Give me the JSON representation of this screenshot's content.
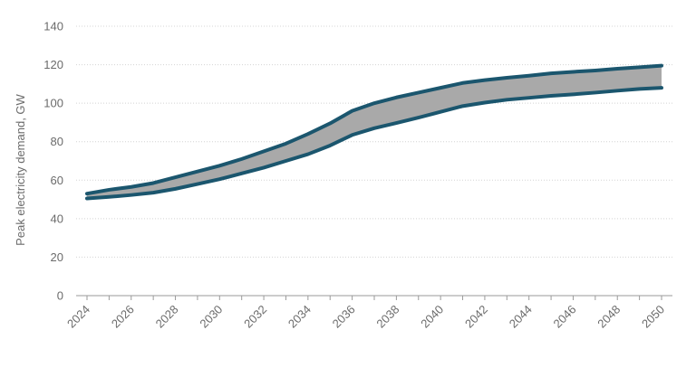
{
  "chart_data": {
    "type": "area",
    "title": "",
    "xlabel": "",
    "ylabel": "Peak electricity demand, GW",
    "x": [
      2024,
      2025,
      2026,
      2027,
      2028,
      2029,
      2030,
      2031,
      2032,
      2033,
      2034,
      2035,
      2036,
      2037,
      2038,
      2039,
      2040,
      2041,
      2042,
      2043,
      2044,
      2045,
      2046,
      2047,
      2048,
      2049,
      2050
    ],
    "xticks": [
      "2024",
      "2026",
      "2028",
      "2030",
      "2032",
      "2034",
      "2036",
      "2038",
      "2040",
      "2042",
      "2044",
      "2046",
      "2048",
      "2050"
    ],
    "ylim": [
      0,
      140
    ],
    "yticks": [
      "0",
      "20",
      "40",
      "60",
      "80",
      "100",
      "120",
      "140"
    ],
    "grid": true,
    "series": [
      {
        "values": [
          53,
          55,
          56.5,
          58.5,
          61.5,
          64.5,
          67.5,
          71,
          75,
          79,
          84,
          89.5,
          96,
          100,
          103,
          105.5,
          108,
          110.5,
          112,
          113.2,
          114.3,
          115.5,
          116.3,
          117,
          117.9,
          118.7,
          119.5
        ]
      },
      {
        "values": [
          50.5,
          51.3,
          52.3,
          53.5,
          55.5,
          58,
          60.5,
          63.5,
          66.5,
          70,
          73.5,
          78,
          83.5,
          87,
          89.7,
          92.5,
          95.5,
          98.5,
          100.3,
          101.8,
          102.8,
          103.8,
          104.6,
          105.5,
          106.5,
          107.4,
          108
        ]
      }
    ],
    "colors": {
      "line": "#1b566e",
      "band": "#a9a9a9"
    }
  }
}
